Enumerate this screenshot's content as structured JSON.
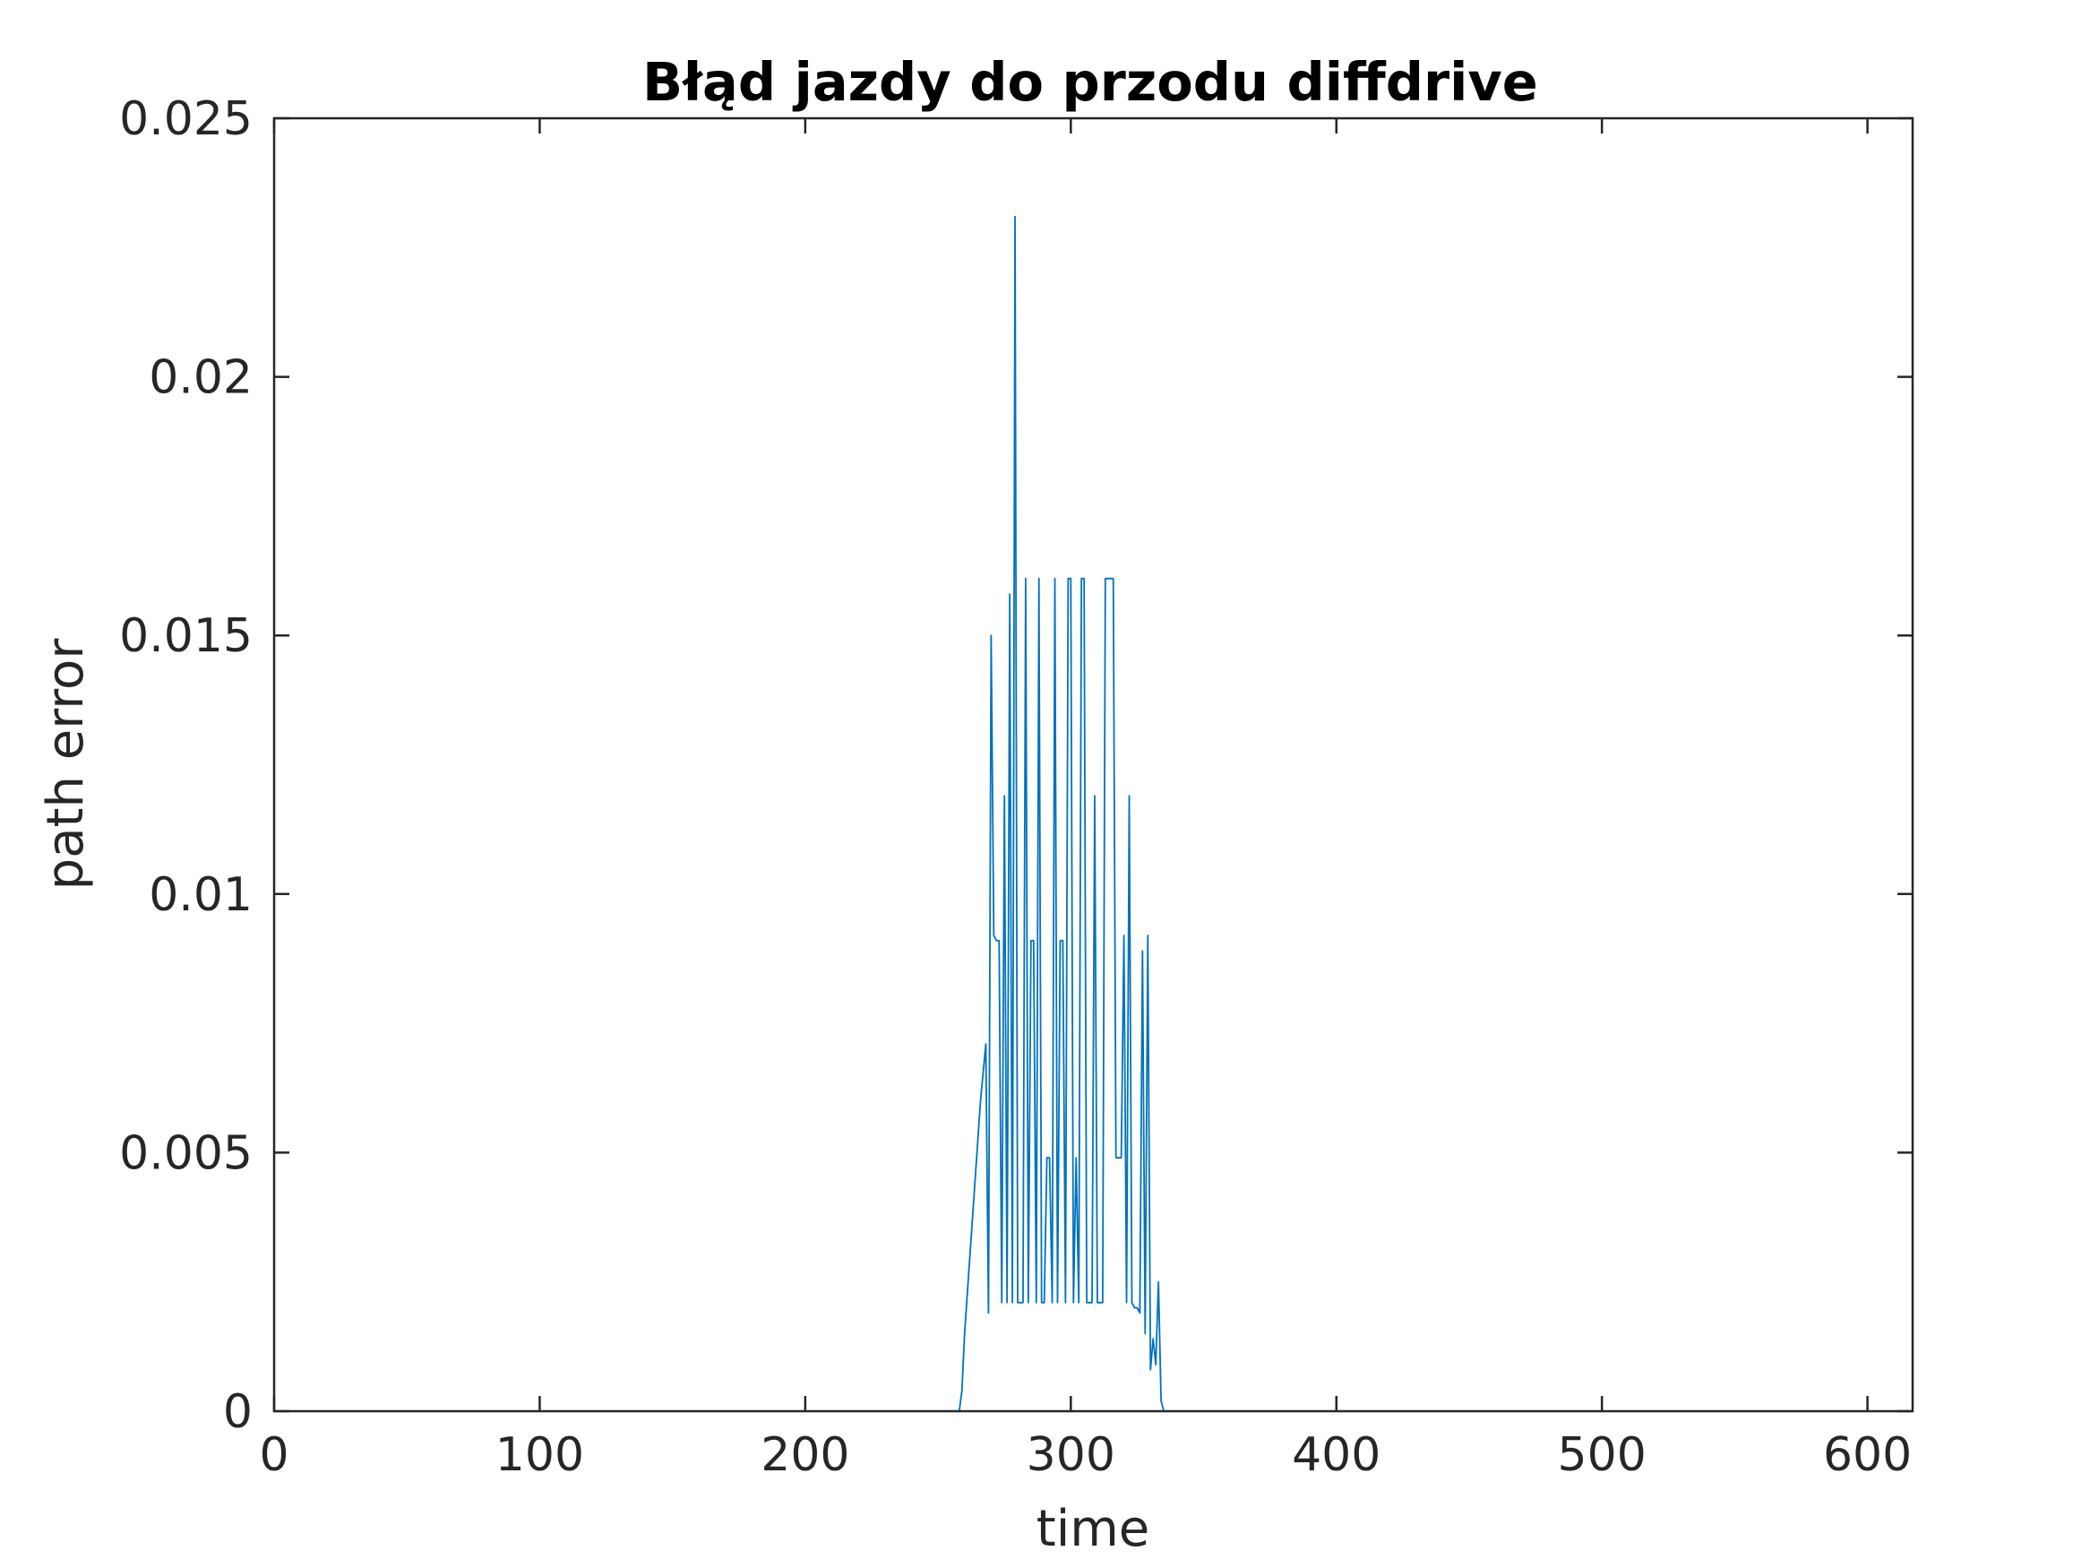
{
  "chart_data": {
    "type": "line",
    "title": "Błąd jazdy do przodu diffdrive",
    "xlabel": "time",
    "ylabel": "path error",
    "xlim": [
      0,
      617
    ],
    "ylim": [
      0,
      0.025
    ],
    "xticks": [
      0,
      100,
      200,
      300,
      400,
      500,
      600
    ],
    "xtick_labels": [
      "0",
      "100",
      "200",
      "300",
      "400",
      "500",
      "600"
    ],
    "yticks": [
      0,
      0.005,
      0.01,
      0.015,
      0.02,
      0.025
    ],
    "ytick_labels": [
      "0",
      "0.005",
      "0.01",
      "0.015",
      "0.02",
      "0.025"
    ],
    "grid": false,
    "series_color": "#0072BD",
    "series": [
      {
        "x": [
          0,
          258,
          259,
          260,
          262,
          264,
          266,
          268,
          269,
          270,
          271,
          272,
          273,
          274,
          275,
          276,
          277,
          278,
          279,
          280,
          281,
          282,
          283,
          284,
          285,
          286,
          287,
          288,
          289,
          290,
          291,
          292,
          293,
          294,
          295,
          296,
          297,
          298,
          299,
          300,
          301,
          302,
          303,
          304,
          305,
          306,
          307,
          308,
          309,
          310,
          311,
          312,
          313,
          314,
          315,
          316,
          317,
          318,
          319,
          320,
          321,
          322,
          323,
          324,
          325,
          326,
          327,
          328,
          329,
          330,
          331,
          332,
          333,
          334,
          335,
          336,
          337,
          338,
          339,
          340,
          341,
          342,
          343,
          344,
          345,
          346,
          347,
          348,
          617
        ],
        "y": [
          0,
          0,
          0.0004,
          0.0015,
          0.003,
          0.0045,
          0.006,
          0.0071,
          0.0019,
          0.015,
          0.0092,
          0.0091,
          0.0091,
          0.0021,
          0.0119,
          0.0021,
          0.0158,
          0.0021,
          0.0231,
          0.0021,
          0.0021,
          0.0021,
          0.0161,
          0.0021,
          0.0091,
          0.0091,
          0.0021,
          0.0161,
          0.0021,
          0.0021,
          0.0049,
          0.0049,
          0.0021,
          0.0161,
          0.0021,
          0.0091,
          0.0091,
          0.0021,
          0.0161,
          0.0161,
          0.0021,
          0.0049,
          0.0021,
          0.0161,
          0.0161,
          0.0021,
          0.0021,
          0.0021,
          0.0119,
          0.0021,
          0.0021,
          0.0021,
          0.0161,
          0.0161,
          0.0161,
          0.0161,
          0.0049,
          0.0049,
          0.0049,
          0.0092,
          0.0021,
          0.0119,
          0.0021,
          0.002,
          0.002,
          0.0019,
          0.0089,
          0.0015,
          0.0092,
          0.0008,
          0.0014,
          0.0009,
          0.0025,
          0.0002,
          0,
          0,
          0,
          0,
          0,
          0,
          0,
          0,
          0,
          0,
          0,
          0,
          0,
          0,
          0
        ]
      }
    ]
  }
}
